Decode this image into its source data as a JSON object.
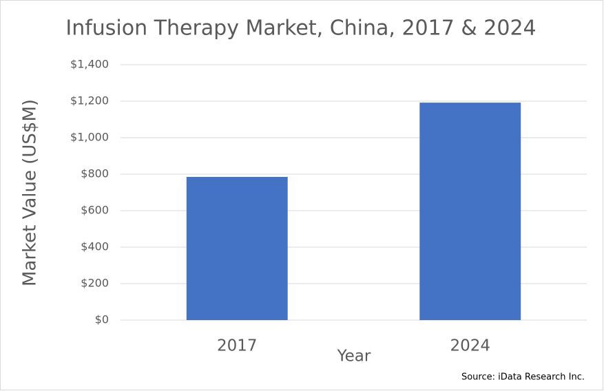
{
  "chart_data": {
    "type": "bar",
    "title": "Infusion Therapy Market, China, 2017 & 2024",
    "x_label": "Year",
    "y_label": "Market Value (US$M)",
    "source": "Source: iData Research Inc.",
    "categories": [
      "2017",
      "2024"
    ],
    "values": [
      785,
      1192
    ],
    "color": "#4472c4",
    "ylim": [
      0,
      1400
    ],
    "yticks": [
      {
        "value": 0,
        "label": "$0"
      },
      {
        "value": 200,
        "label": "$200"
      },
      {
        "value": 400,
        "label": "$400"
      },
      {
        "value": 600,
        "label": "$600"
      },
      {
        "value": 800,
        "label": "$800"
      },
      {
        "value": 1000,
        "label": "$1,000"
      },
      {
        "value": 1200,
        "label": "$1,200"
      },
      {
        "value": 1400,
        "label": "$1,400"
      }
    ],
    "grid": true
  }
}
